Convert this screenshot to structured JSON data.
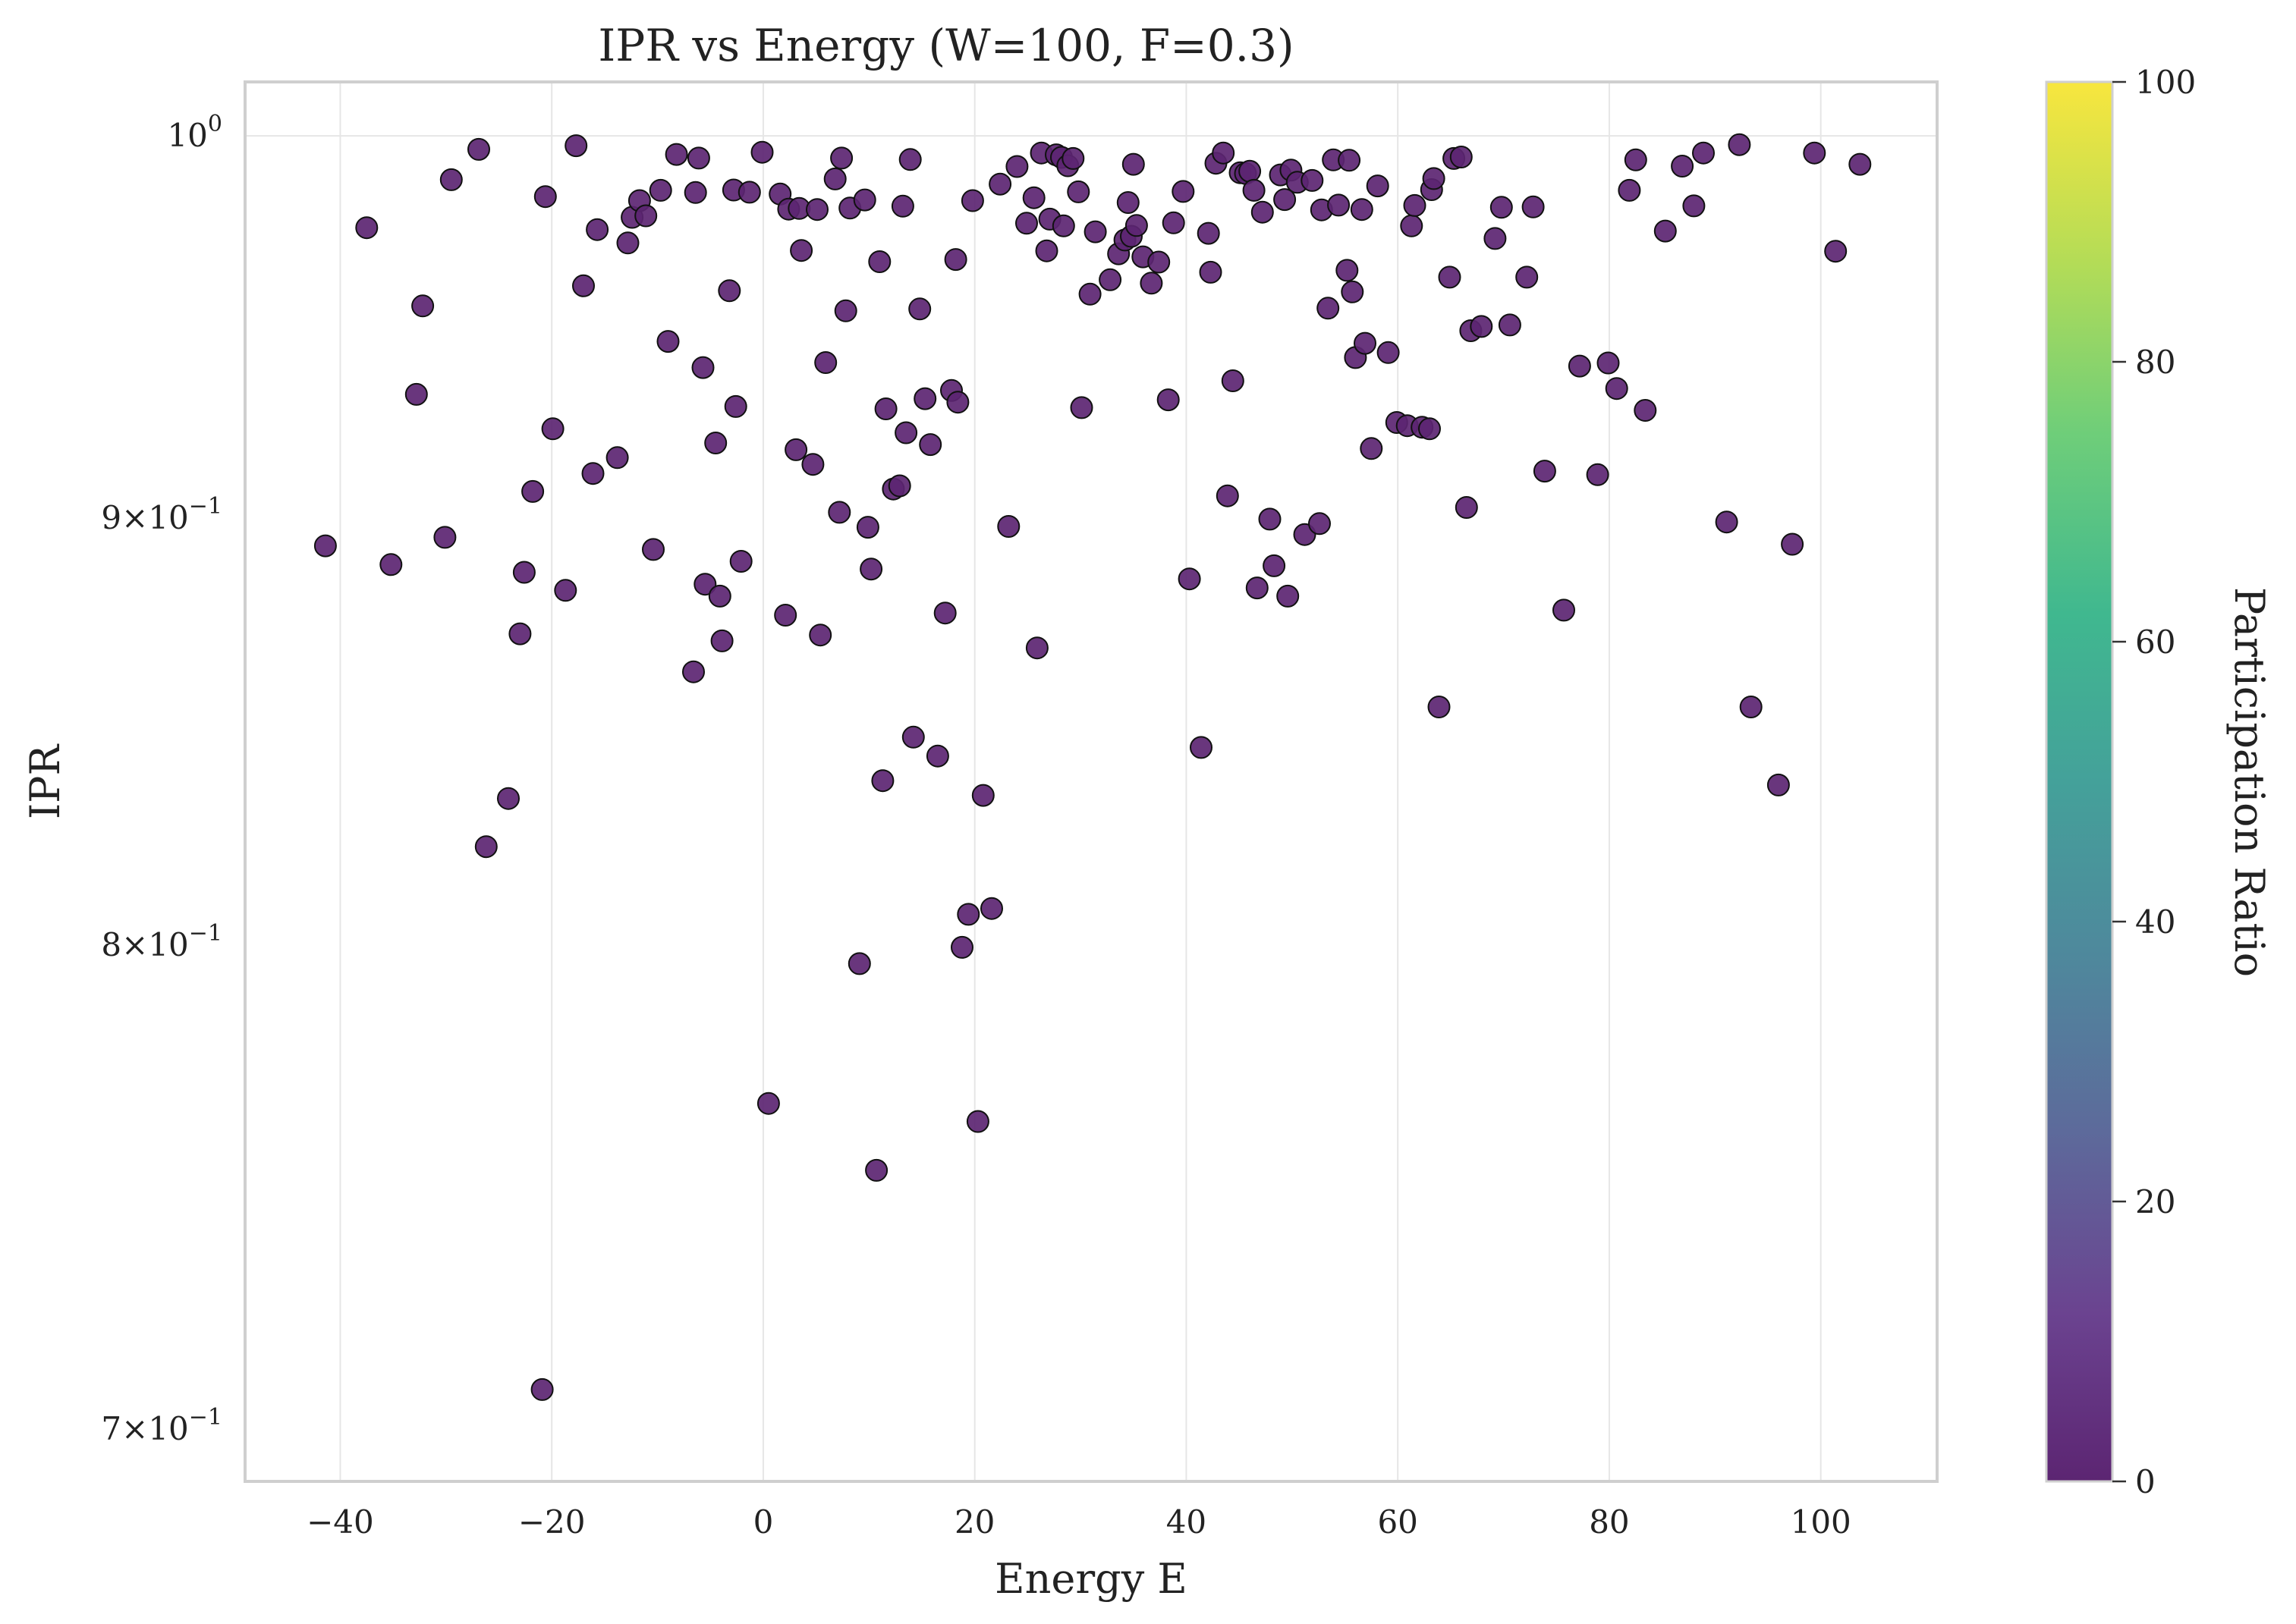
{
  "chart_data": {
    "type": "scatter",
    "title": "IPR vs Energy (W=100, F=0.3)",
    "xlabel": "Energy E",
    "ylabel": "IPR",
    "xlim": [
      -49,
      111
    ],
    "ylim": [
      0.69,
      1.015
    ],
    "yscale": "log",
    "grid": true,
    "point_color": "#5c2572",
    "x_ticks": [
      {
        "v": -40,
        "label": "−40"
      },
      {
        "v": -20,
        "label": "−20"
      },
      {
        "v": 0,
        "label": "0"
      },
      {
        "v": 20,
        "label": "20"
      },
      {
        "v": 40,
        "label": "40"
      },
      {
        "v": 60,
        "label": "60"
      },
      {
        "v": 80,
        "label": "80"
      },
      {
        "v": 100,
        "label": "100"
      }
    ],
    "y_ticks": [
      {
        "v": 1.0,
        "base": "10",
        "exp": "0",
        "mant": ""
      },
      {
        "v": 0.9,
        "base": "10",
        "exp": "−1",
        "mant": "9×"
      },
      {
        "v": 0.8,
        "base": "10",
        "exp": "−1",
        "mant": "8×"
      },
      {
        "v": 0.7,
        "base": "10",
        "exp": "−1",
        "mant": "7×"
      }
    ],
    "colorbar": {
      "label": "Participation Ratio",
      "min": 0,
      "max": 100,
      "ticks": [
        "0",
        "20",
        "40",
        "60",
        "80",
        "100"
      ]
    },
    "points": [
      [
        -41.4,
        0.8931
      ],
      [
        -37.5,
        0.975
      ],
      [
        -35.2,
        0.8885
      ],
      [
        -32.8,
        0.9312
      ],
      [
        -32.2,
        0.9542
      ],
      [
        -30.1,
        0.8952
      ],
      [
        -29.5,
        0.988
      ],
      [
        -26.9,
        0.9963
      ],
      [
        -26.2,
        0.822
      ],
      [
        -24.1,
        0.833
      ],
      [
        -23.0,
        0.8717
      ],
      [
        -22.6,
        0.8866
      ],
      [
        -21.8,
        0.9066
      ],
      [
        -20.9,
        0.7077
      ],
      [
        -20.6,
        0.9834
      ],
      [
        -19.9,
        0.9224
      ],
      [
        -18.7,
        0.8822
      ],
      [
        -17.7,
        0.9973
      ],
      [
        -17.0,
        0.9595
      ],
      [
        -16.1,
        0.9111
      ],
      [
        -15.7,
        0.9745
      ],
      [
        -13.8,
        0.9151
      ],
      [
        -12.8,
        0.9709
      ],
      [
        -12.4,
        0.9778
      ],
      [
        -11.7,
        0.9823
      ],
      [
        -11.1,
        0.9782
      ],
      [
        -10.4,
        0.8922
      ],
      [
        -9.7,
        0.9851
      ],
      [
        -9.0,
        0.9449
      ],
      [
        -8.2,
        0.9949
      ],
      [
        -6.6,
        0.8626
      ],
      [
        -6.4,
        0.9845
      ],
      [
        -6.1,
        0.9939
      ],
      [
        -5.7,
        0.9381
      ],
      [
        -5.5,
        0.8837
      ],
      [
        -4.5,
        0.9188
      ],
      [
        -4.1,
        0.8808
      ],
      [
        -3.9,
        0.87
      ],
      [
        -3.2,
        0.9582
      ],
      [
        -2.8,
        0.9852
      ],
      [
        -2.6,
        0.9281
      ],
      [
        -2.1,
        0.8893
      ],
      [
        -1.3,
        0.9846
      ],
      [
        -0.1,
        0.9955
      ],
      [
        0.5,
        0.7658
      ],
      [
        1.6,
        0.9841
      ],
      [
        2.1,
        0.8762
      ],
      [
        2.4,
        0.98
      ],
      [
        3.1,
        0.9171
      ],
      [
        3.4,
        0.9802
      ],
      [
        3.6,
        0.9689
      ],
      [
        4.7,
        0.9134
      ],
      [
        5.1,
        0.9799
      ],
      [
        5.4,
        0.8714
      ],
      [
        5.9,
        0.9394
      ],
      [
        6.8,
        0.9882
      ],
      [
        7.2,
        0.9014
      ],
      [
        7.4,
        0.9939
      ],
      [
        7.8,
        0.9529
      ],
      [
        8.2,
        0.9803
      ],
      [
        9.1,
        0.7959
      ],
      [
        9.6,
        0.9825
      ],
      [
        9.9,
        0.8977
      ],
      [
        10.2,
        0.8874
      ],
      [
        10.7,
        0.7518
      ],
      [
        11.0,
        0.9659
      ],
      [
        11.3,
        0.8371
      ],
      [
        11.6,
        0.9275
      ],
      [
        12.3,
        0.9072
      ],
      [
        12.9,
        0.908
      ],
      [
        13.2,
        0.9808
      ],
      [
        13.5,
        0.9214
      ],
      [
        13.9,
        0.9935
      ],
      [
        14.2,
        0.8472
      ],
      [
        14.8,
        0.9534
      ],
      [
        15.3,
        0.9301
      ],
      [
        15.8,
        0.9184
      ],
      [
        16.5,
        0.8428
      ],
      [
        17.2,
        0.8767
      ],
      [
        17.8,
        0.9322
      ],
      [
        18.2,
        0.9665
      ],
      [
        18.4,
        0.9292
      ],
      [
        18.8,
        0.7995
      ],
      [
        19.4,
        0.8068
      ],
      [
        19.8,
        0.9823
      ],
      [
        20.3,
        0.762
      ],
      [
        20.8,
        0.8337
      ],
      [
        21.6,
        0.8081
      ],
      [
        22.4,
        0.9868
      ],
      [
        23.2,
        0.8979
      ],
      [
        24.0,
        0.9916
      ],
      [
        24.9,
        0.9762
      ],
      [
        25.6,
        0.9831
      ],
      [
        25.9,
        0.8683
      ],
      [
        26.3,
        0.9953
      ],
      [
        26.8,
        0.9688
      ],
      [
        27.1,
        0.9773
      ],
      [
        27.7,
        0.9948
      ],
      [
        28.2,
        0.9941
      ],
      [
        28.4,
        0.9755
      ],
      [
        28.8,
        0.9918
      ],
      [
        29.3,
        0.9938
      ],
      [
        29.8,
        0.9847
      ],
      [
        30.1,
        0.9278
      ],
      [
        30.9,
        0.9573
      ],
      [
        31.4,
        0.9739
      ],
      [
        32.8,
        0.9611
      ],
      [
        33.6,
        0.968
      ],
      [
        34.2,
        0.9717
      ],
      [
        34.5,
        0.9818
      ],
      [
        34.8,
        0.9727
      ],
      [
        35.0,
        0.9922
      ],
      [
        35.3,
        0.9756
      ],
      [
        35.9,
        0.9672
      ],
      [
        36.7,
        0.9602
      ],
      [
        37.4,
        0.9658
      ],
      [
        38.3,
        0.9298
      ],
      [
        38.8,
        0.9763
      ],
      [
        39.7,
        0.9848
      ],
      [
        40.3,
        0.885
      ],
      [
        41.4,
        0.8448
      ],
      [
        42.1,
        0.9735
      ],
      [
        42.3,
        0.9631
      ],
      [
        42.8,
        0.9925
      ],
      [
        43.5,
        0.9953
      ],
      [
        43.9,
        0.9055
      ],
      [
        44.4,
        0.9347
      ],
      [
        45.1,
        0.9899
      ],
      [
        45.6,
        0.9897
      ],
      [
        46.0,
        0.9903
      ],
      [
        46.4,
        0.9851
      ],
      [
        46.7,
        0.8828
      ],
      [
        47.2,
        0.9792
      ],
      [
        47.9,
        0.8997
      ],
      [
        48.3,
        0.8882
      ],
      [
        48.9,
        0.9893
      ],
      [
        49.3,
        0.9826
      ],
      [
        49.6,
        0.8808
      ],
      [
        49.9,
        0.9906
      ],
      [
        50.5,
        0.9873
      ],
      [
        51.2,
        0.8959
      ],
      [
        51.9,
        0.9878
      ],
      [
        52.6,
        0.8986
      ],
      [
        52.8,
        0.9798
      ],
      [
        53.4,
        0.9536
      ],
      [
        53.9,
        0.9934
      ],
      [
        54.4,
        0.9811
      ],
      [
        55.2,
        0.9636
      ],
      [
        55.4,
        0.9933
      ],
      [
        55.7,
        0.9579
      ],
      [
        56.0,
        0.9407
      ],
      [
        56.6,
        0.9799
      ],
      [
        56.9,
        0.9444
      ],
      [
        57.5,
        0.9174
      ],
      [
        58.1,
        0.9863
      ],
      [
        59.1,
        0.942
      ],
      [
        59.9,
        0.924
      ],
      [
        60.9,
        0.9232
      ],
      [
        61.3,
        0.9755
      ],
      [
        61.6,
        0.981
      ],
      [
        62.3,
        0.9228
      ],
      [
        63.0,
        0.9224
      ],
      [
        63.2,
        0.9853
      ],
      [
        63.4,
        0.9883
      ],
      [
        63.9,
        0.8543
      ],
      [
        64.9,
        0.9618
      ],
      [
        65.3,
        0.9938
      ],
      [
        66.0,
        0.9942
      ],
      [
        66.5,
        0.9026
      ],
      [
        66.9,
        0.9477
      ],
      [
        67.9,
        0.9488
      ],
      [
        69.2,
        0.9721
      ],
      [
        69.8,
        0.9805
      ],
      [
        70.6,
        0.9492
      ],
      [
        72.2,
        0.9618
      ],
      [
        72.8,
        0.9806
      ],
      [
        73.9,
        0.9117
      ],
      [
        75.7,
        0.8774
      ],
      [
        77.2,
        0.9385
      ],
      [
        78.9,
        0.9108
      ],
      [
        79.9,
        0.9393
      ],
      [
        80.7,
        0.9327
      ],
      [
        81.9,
        0.9851
      ],
      [
        82.5,
        0.9934
      ],
      [
        83.4,
        0.9271
      ],
      [
        86.9,
        0.9917
      ],
      [
        88.0,
        0.9809
      ],
      [
        88.9,
        0.9953
      ],
      [
        91.1,
        0.899
      ],
      [
        92.3,
        0.9976
      ],
      [
        93.4,
        0.8543
      ],
      [
        96.0,
        0.8361
      ],
      [
        97.3,
        0.8935
      ],
      [
        99.4,
        0.9953
      ],
      [
        101.4,
        0.9687
      ],
      [
        103.7,
        0.9922
      ],
      [
        85.3,
        0.9741
      ]
    ]
  }
}
